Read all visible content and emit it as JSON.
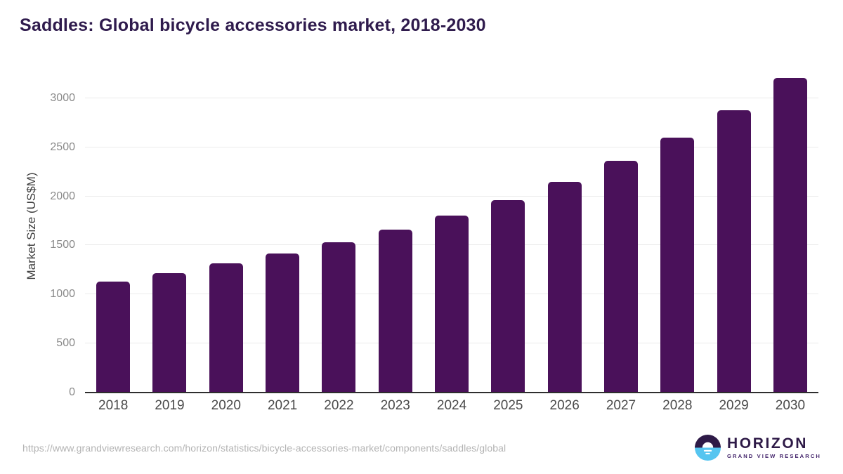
{
  "page": {
    "background": "#ffffff"
  },
  "chart_data": {
    "type": "bar",
    "title": "Saddles: Global bicycle accessories market, 2018-2030",
    "categories": [
      "2018",
      "2019",
      "2020",
      "2021",
      "2022",
      "2023",
      "2024",
      "2025",
      "2026",
      "2027",
      "2028",
      "2029",
      "2030"
    ],
    "values": [
      1130,
      1215,
      1320,
      1420,
      1530,
      1660,
      1805,
      1960,
      2150,
      2360,
      2600,
      2875,
      3210
    ],
    "xlabel": "",
    "ylabel": "Market Size (US$M)",
    "yticks": [
      0,
      500,
      1000,
      1500,
      2000,
      2500,
      3000
    ],
    "ylim": [
      0,
      3300
    ],
    "grid": "horizontal",
    "legend": "none",
    "colors": {
      "bar": "#4a115a",
      "title": "#2f1b4d",
      "gridline": "#ebebeb",
      "axis_line": "#2e2e2e",
      "ytick_text": "#8a8a8a",
      "xtick_text": "#4a4a4a",
      "ylabel_text": "#3f3f3f"
    }
  },
  "footer": {
    "source_url": "https://www.grandviewresearch.com/horizon/statistics/bicycle-accessories-market/components/saddles/global",
    "logo": {
      "name": "HORIZON",
      "subtitle": "GRAND VIEW RESEARCH",
      "icon": "horizon-sun-icon",
      "colors": {
        "dark": "#2e1a47",
        "blue": "#56c5f0",
        "text": "#2e1a47"
      }
    }
  }
}
